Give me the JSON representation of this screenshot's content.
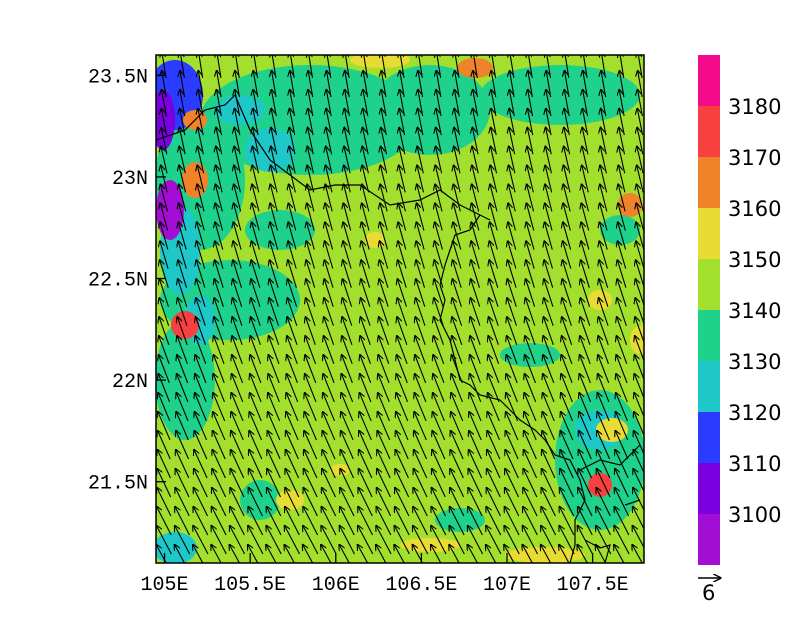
{
  "map": {
    "x_ticks": [
      "105E",
      "105.5E",
      "106E",
      "106.5E",
      "107E",
      "107.5E"
    ],
    "y_ticks": [
      "23.5N",
      "23N",
      "22.5N",
      "22N",
      "21.5N"
    ],
    "x_range": [
      104.95,
      107.8
    ],
    "y_range": [
      21.1,
      23.6
    ],
    "field_description": "filled contour field with wind vector overlay and coastline/border lines",
    "grid": false
  },
  "colorbar": {
    "labels": [
      "3100",
      "3110",
      "3120",
      "3130",
      "3140",
      "3150",
      "3160",
      "3170",
      "3180"
    ],
    "colors": [
      "#a30ed4",
      "#7a00e0",
      "#2a3cff",
      "#1ec8c8",
      "#1ed28c",
      "#a3e02e",
      "#e8dc34",
      "#f0822a",
      "#f84040",
      "#f40a8a"
    ]
  },
  "vector_legend": {
    "reference_value": "6"
  }
}
